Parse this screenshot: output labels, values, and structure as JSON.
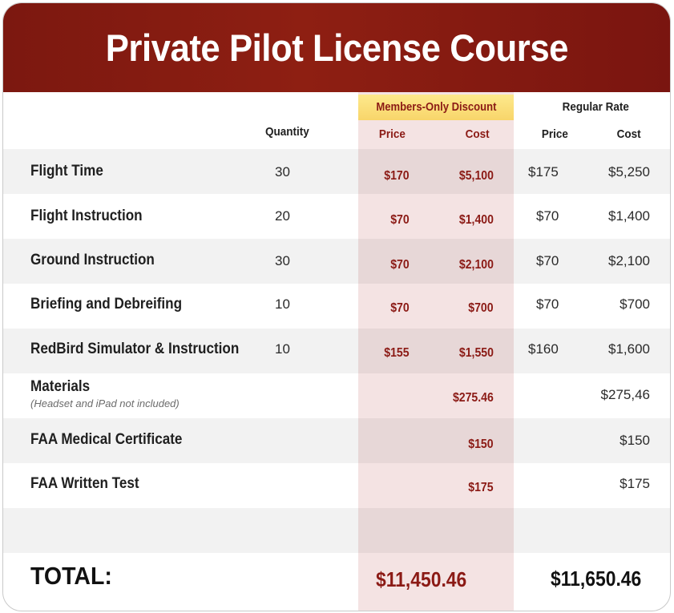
{
  "title": "Private Pilot License Course",
  "headers": {
    "quantity": "Quantity",
    "members_discount": "Members-Only Discount",
    "regular_rate": "Regular Rate",
    "price": "Price",
    "cost": "Cost"
  },
  "rows": [
    {
      "item": "Flight Time",
      "note": "",
      "qty": "30",
      "m_price": "$170",
      "m_cost": "$5,100",
      "r_price": "$175",
      "r_cost": "$5,250"
    },
    {
      "item": "Flight Instruction",
      "note": "",
      "qty": "20",
      "m_price": "$70",
      "m_cost": "$1,400",
      "r_price": "$70",
      "r_cost": "$1,400"
    },
    {
      "item": "Ground Instruction",
      "note": "",
      "qty": "30",
      "m_price": "$70",
      "m_cost": "$2,100",
      "r_price": "$70",
      "r_cost": "$2,100"
    },
    {
      "item": "Briefing and Debreifing",
      "note": "",
      "qty": "10",
      "m_price": "$70",
      "m_cost": "$700",
      "r_price": "$70",
      "r_cost": "$700"
    },
    {
      "item": "RedBird Simulator & Instruction",
      "note": "",
      "qty": "10",
      "m_price": "$155",
      "m_cost": "$1,550",
      "r_price": "$160",
      "r_cost": "$1,600"
    },
    {
      "item": "Materials",
      "note": "(Headset and iPad not included)",
      "qty": "",
      "m_price": "",
      "m_cost": "$275.46",
      "r_price": "",
      "r_cost": "$275,46"
    },
    {
      "item": "FAA Medical Certificate",
      "note": "",
      "qty": "",
      "m_price": "",
      "m_cost": "$150",
      "r_price": "",
      "r_cost": "$150"
    },
    {
      "item": "FAA Written Test",
      "note": "",
      "qty": "",
      "m_price": "",
      "m_cost": "$175",
      "r_price": "",
      "r_cost": "$175"
    }
  ],
  "total": {
    "label": "TOTAL:",
    "members": "$11,450.46",
    "regular": "$11,650.46"
  },
  "colors": {
    "banner": "#8e1f12",
    "accent_text": "#8b1a15",
    "members_column": "#f4e3e3",
    "discount_badge": "#f8d56a"
  }
}
